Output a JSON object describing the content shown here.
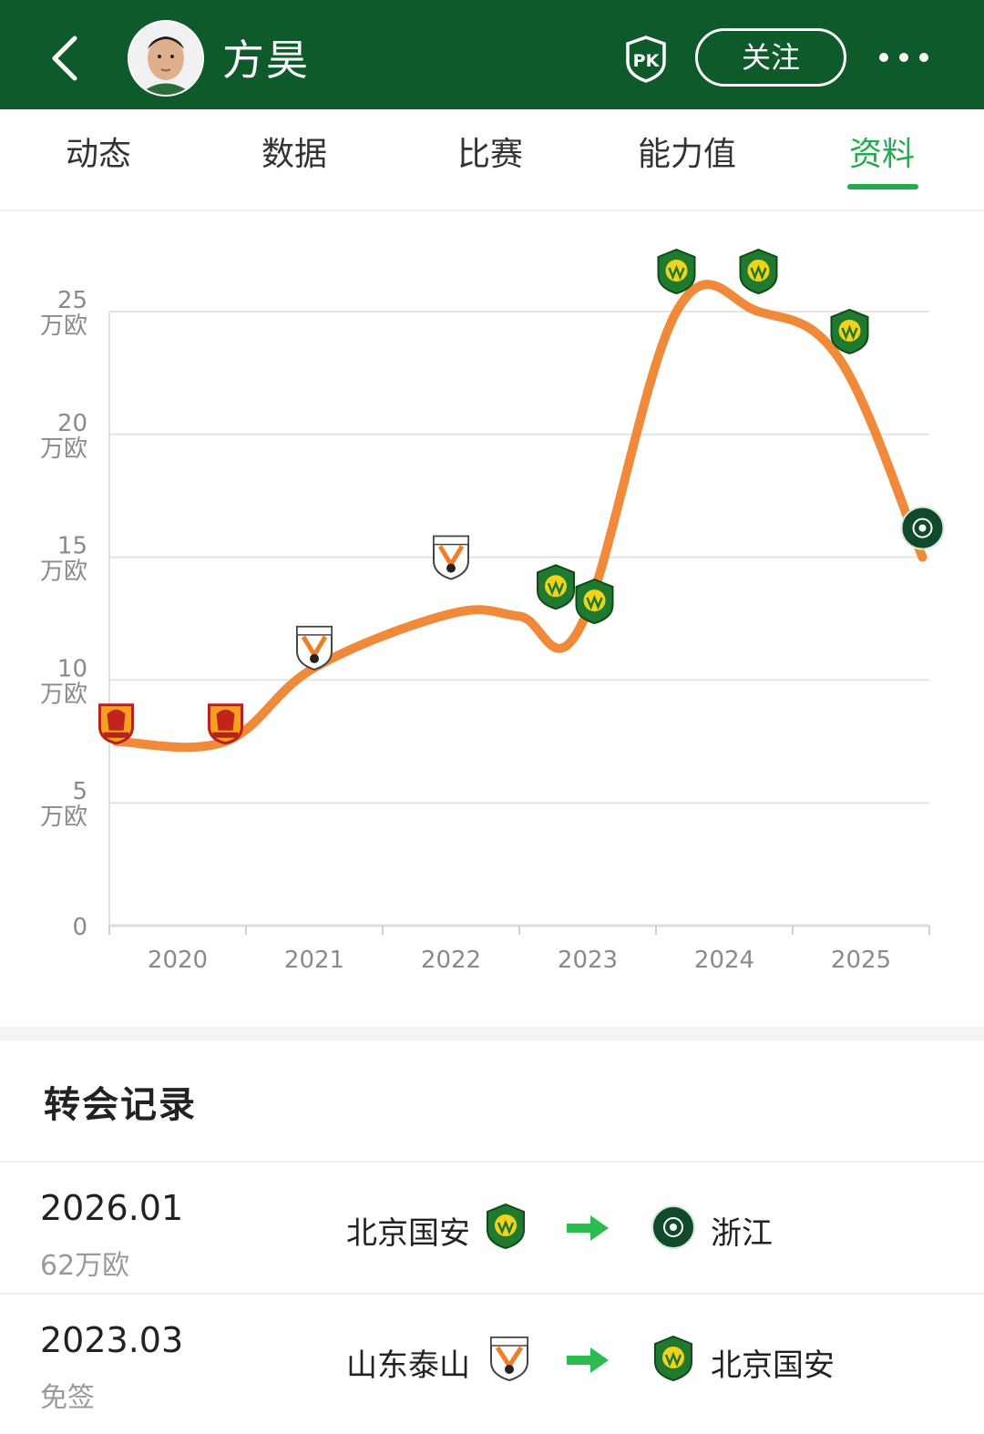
{
  "header": {
    "player_name": "方昊",
    "follow_label": "关注",
    "pk_label": "PK"
  },
  "tabs": [
    {
      "label": "动态"
    },
    {
      "label": "数据"
    },
    {
      "label": "比赛"
    },
    {
      "label": "能力值"
    },
    {
      "label": "资料",
      "active": true
    }
  ],
  "chart_data": {
    "type": "line",
    "y_tick_labels": [
      {
        "value": "0",
        "unit": ""
      },
      {
        "value": "5",
        "unit": "万欧"
      },
      {
        "value": "10",
        "unit": "万欧"
      },
      {
        "value": "15",
        "unit": "万欧"
      },
      {
        "value": "20",
        "unit": "万欧"
      },
      {
        "value": "25",
        "unit": "万欧"
      }
    ],
    "x_tick_labels": [
      "2020",
      "2021",
      "2022",
      "2023",
      "2024",
      "2025"
    ],
    "ylim": [
      0,
      25
    ],
    "line_color": "#f08a3a",
    "points": [
      {
        "t": 2019.55,
        "value": 7.5,
        "club": "武汉卓尔"
      },
      {
        "t": 2020.35,
        "value": 7.5,
        "club": "武汉卓尔"
      },
      {
        "t": 2021.0,
        "value": 10.5,
        "club": "山东泰山"
      },
      {
        "t": 2022.0,
        "value": 12.7,
        "club": "山东泰山"
      },
      {
        "t": 2022.5,
        "value": 12.6,
        "club": "北京国安"
      },
      {
        "t": 2022.95,
        "value": 12.2,
        "club": "北京国安"
      },
      {
        "t": 2023.65,
        "value": 25,
        "club": "北京国安"
      },
      {
        "t": 2024.25,
        "value": 25,
        "club": "北京国安"
      },
      {
        "t": 2024.85,
        "value": 23,
        "club": "北京国安"
      },
      {
        "t": 2025.45,
        "value": 15,
        "club": "浙江"
      }
    ]
  },
  "transfers": {
    "title": "转会记录",
    "rows": [
      {
        "date": "2026.01",
        "fee": "62万欧",
        "from": "北京国安",
        "to": "浙江"
      },
      {
        "date": "2023.03",
        "fee": "免签",
        "from": "山东泰山",
        "to": "北京国安"
      }
    ]
  },
  "colors": {
    "header_bg": "#0e5a2b",
    "accent": "#1fae4b",
    "line": "#f08a3a",
    "arrow": "#2bbd4f"
  }
}
